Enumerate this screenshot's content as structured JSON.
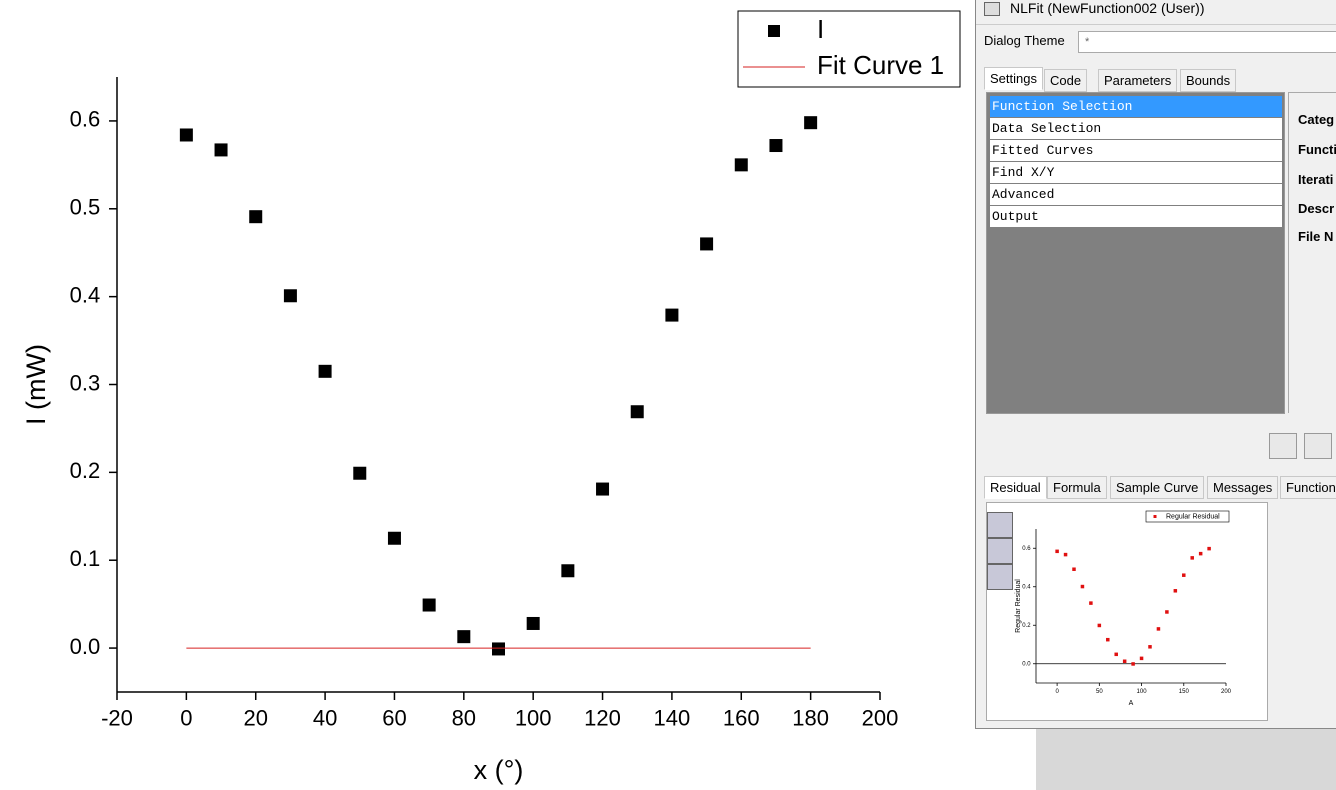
{
  "chart_data": [
    {
      "type": "scatter",
      "xlabel": "x (°)",
      "ylabel": "I (mW)",
      "xlim": [
        -20,
        200
      ],
      "ylim": [
        -0.05,
        0.65
      ],
      "xticks": [
        -20,
        0,
        20,
        40,
        60,
        80,
        100,
        120,
        140,
        160,
        180,
        200
      ],
      "yticks": [
        {
          "value": 0,
          "label": "0.0"
        },
        0.1,
        0.2,
        0.3,
        0.4,
        0.5,
        0.6
      ],
      "series": [
        {
          "name": "I",
          "color": "#000000",
          "style": "marker",
          "x": [
            0,
            10,
            20,
            30,
            40,
            50,
            60,
            70,
            80,
            90,
            100,
            110,
            120,
            130,
            140,
            150,
            160,
            170,
            180
          ],
          "values": [
            0.584,
            0.567,
            0.491,
            0.401,
            0.315,
            0.199,
            0.125,
            0.049,
            0.013,
            -0.001,
            0.028,
            0.088,
            0.181,
            0.269,
            0.379,
            0.46,
            0.55,
            0.572,
            0.598
          ]
        },
        {
          "name": "Fit Curve 1",
          "color": "#d62020",
          "style": "line",
          "x": [
            0,
            180
          ],
          "values": [
            0,
            0
          ]
        }
      ]
    },
    {
      "type": "scatter",
      "xlabel": "A",
      "ylabel": "Regular Residual",
      "xlim": [
        -25,
        200
      ],
      "ylim": [
        -0.1,
        0.7
      ],
      "xticks": [
        0,
        50,
        100,
        150,
        200
      ],
      "yticks": [
        {
          "value": 0,
          "label": "0.0"
        },
        0.2,
        0.4,
        0.6
      ],
      "series": [
        {
          "name": "Regular Residual",
          "color": "#e01010",
          "style": "marker",
          "x": [
            0,
            10,
            20,
            30,
            40,
            50,
            60,
            70,
            80,
            90,
            100,
            110,
            120,
            130,
            140,
            150,
            160,
            170,
            180
          ],
          "values": [
            0.584,
            0.567,
            0.491,
            0.401,
            0.315,
            0.199,
            0.125,
            0.049,
            0.013,
            -0.001,
            0.028,
            0.088,
            0.181,
            0.269,
            0.379,
            0.46,
            0.55,
            0.572,
            0.598
          ]
        }
      ]
    }
  ],
  "dialog": {
    "title": "NLFit (NewFunction002 (User))",
    "theme_label": "Dialog Theme",
    "theme_value": "*",
    "tabs": [
      "Settings",
      "Code",
      "Parameters",
      "Bounds"
    ],
    "pages": [
      "Function Selection",
      "Data Selection",
      "Fitted Curves",
      "Find X/Y",
      "Advanced",
      "Output"
    ],
    "fields": [
      "Categ",
      "Functi",
      "Iterati",
      "Descr",
      "File N"
    ],
    "bottom_tabs": [
      "Residual",
      "Formula",
      "Sample Curve",
      "Messages",
      "Function"
    ]
  }
}
